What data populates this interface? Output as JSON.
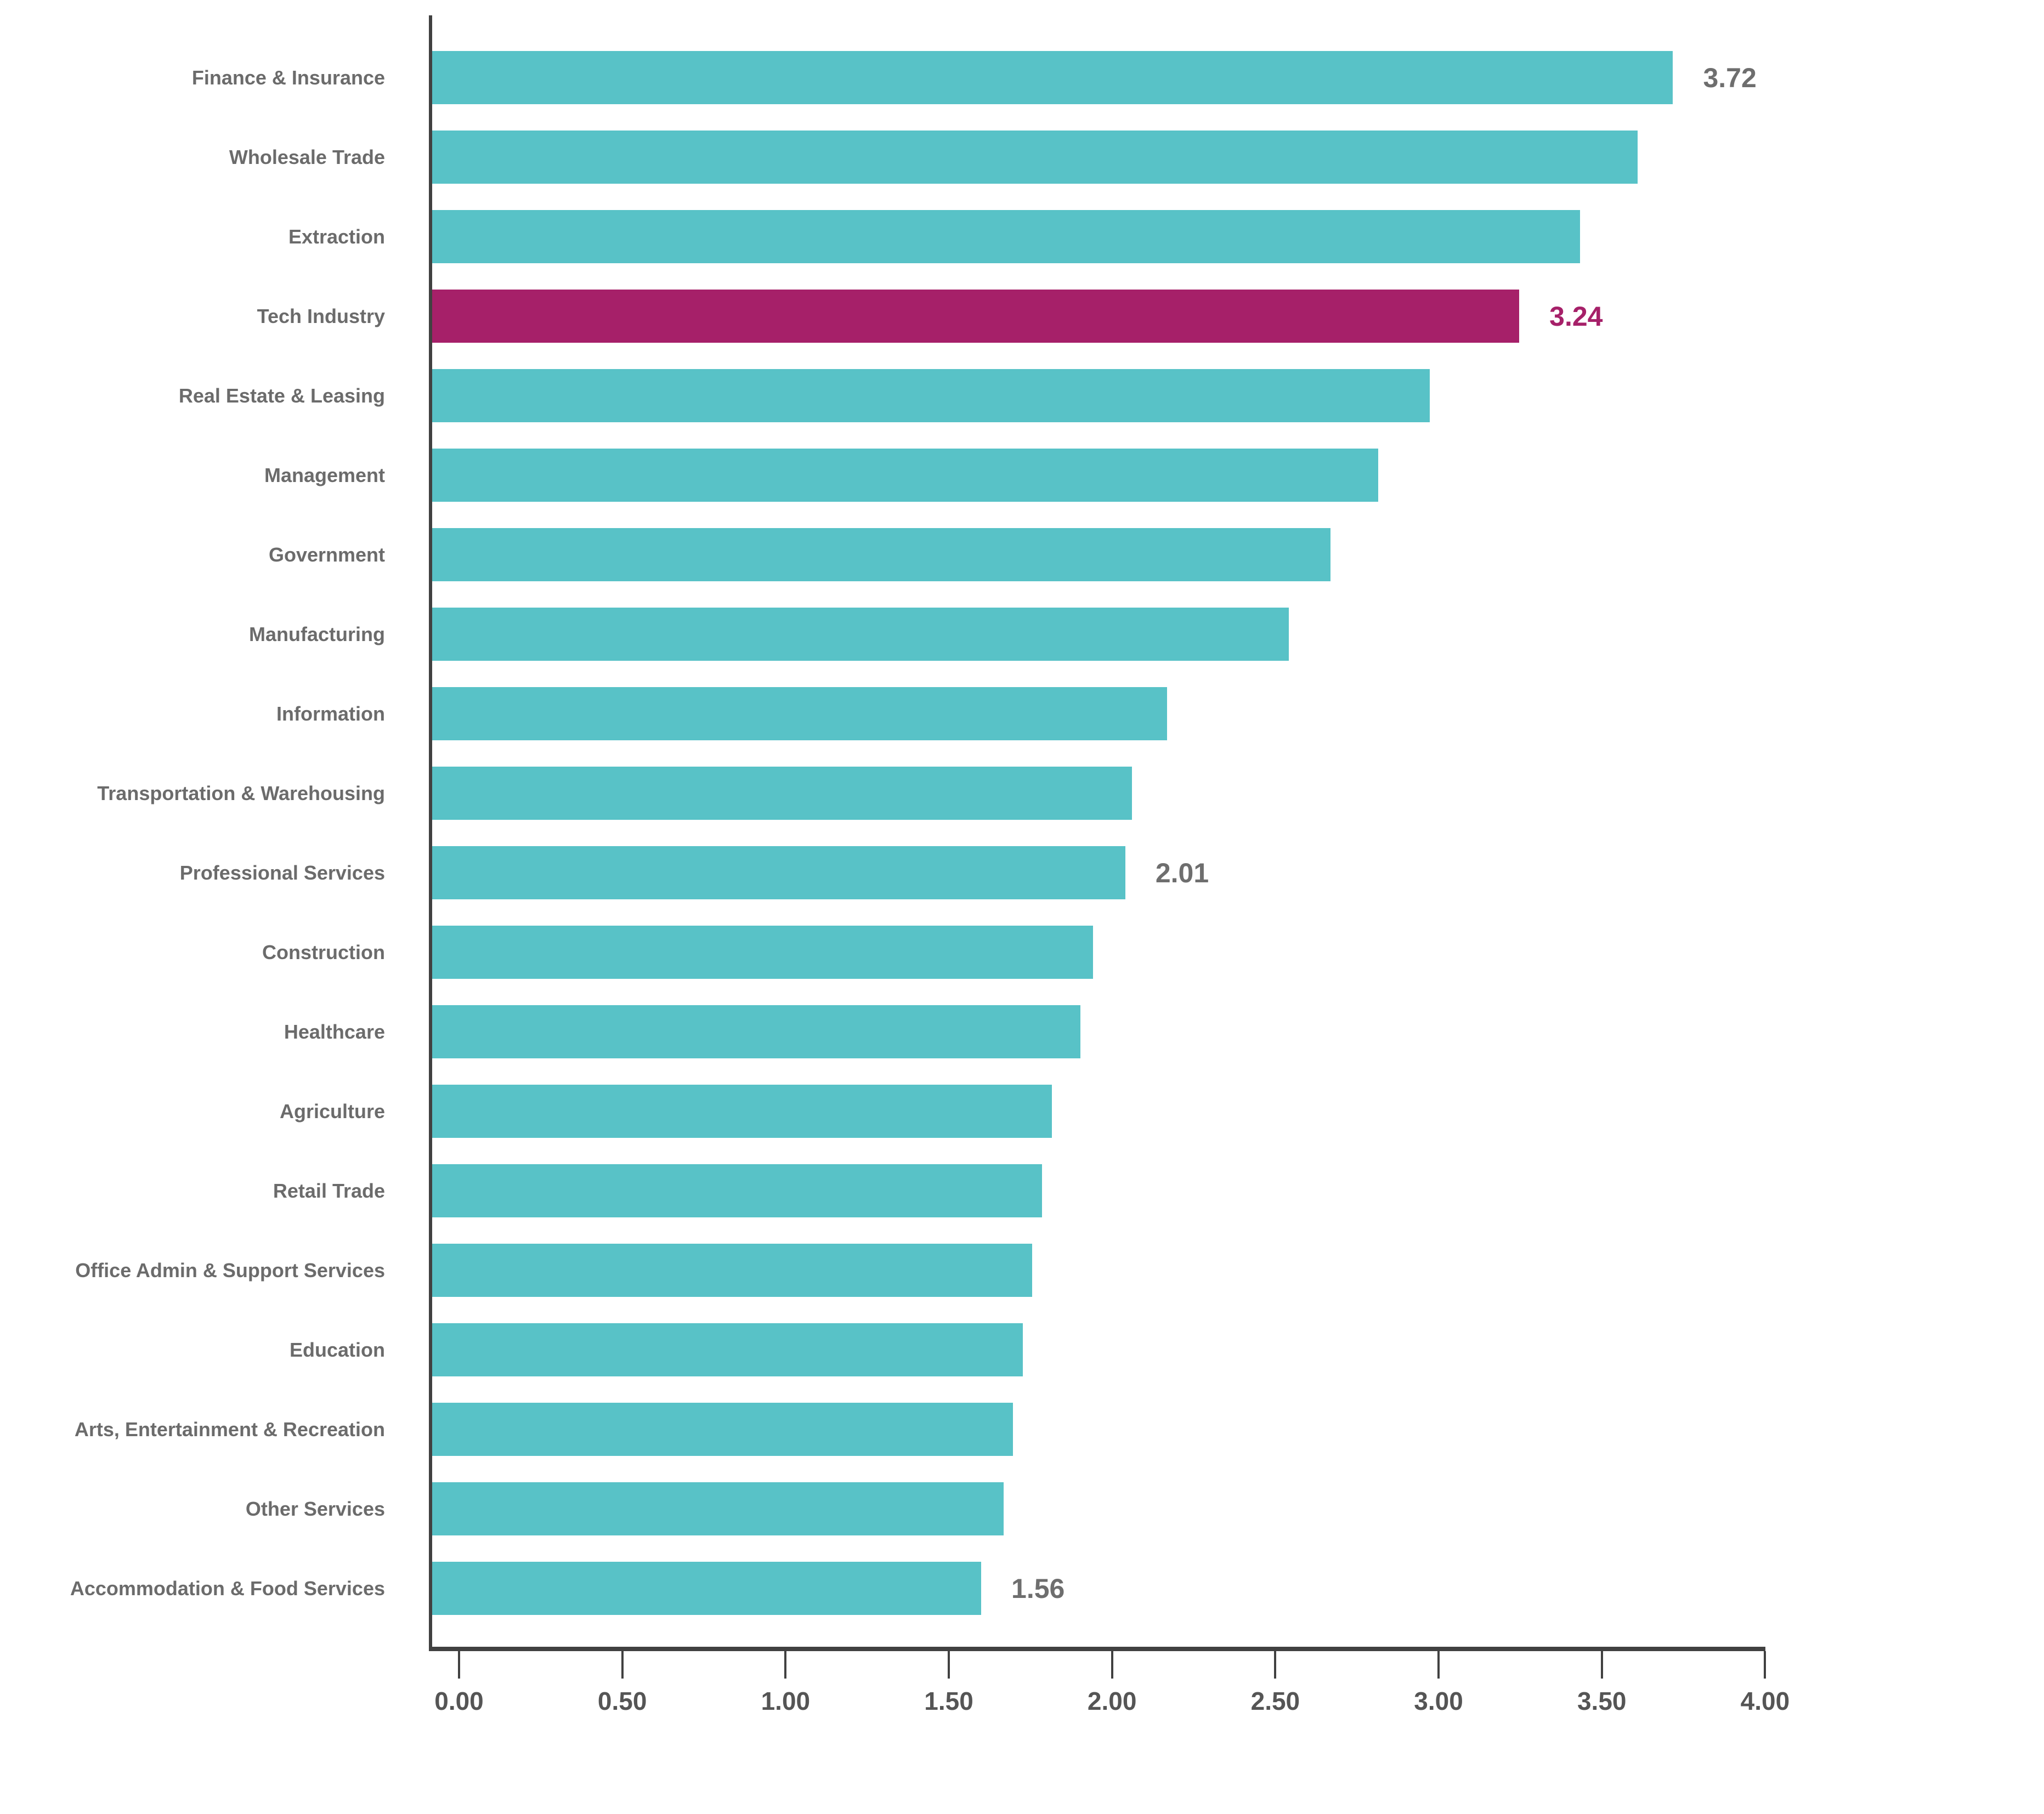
{
  "chart_data": {
    "type": "bar",
    "orientation": "horizontal",
    "title": "",
    "xlabel": "",
    "ylabel": "",
    "xlim": [
      0,
      4.0
    ],
    "grid": false,
    "legend": false,
    "x_ticks": [
      "0.00",
      "0.50",
      "1.00",
      "1.50",
      "2.00",
      "2.50",
      "3.00",
      "3.50",
      "4.00"
    ],
    "bar_color": "#58C2C7",
    "highlight_color": "#A62069",
    "axis_color": "#414141",
    "category_label_color": "#6B6B6B",
    "tick_label_color": "#555555",
    "annotation_color": "#6E6E6E",
    "highlighted_category": "Tech Industry",
    "bars": [
      {
        "label": "Finance & Insurance",
        "value": 3.72,
        "annotation": "3.72",
        "highlight": false
      },
      {
        "label": "Wholesale Trade",
        "value": 3.61,
        "annotation": "",
        "highlight": false
      },
      {
        "label": "Extraction",
        "value": 3.43,
        "annotation": "",
        "highlight": false
      },
      {
        "label": "Tech Industry",
        "value": 3.24,
        "annotation": "3.24",
        "highlight": true
      },
      {
        "label": "Real Estate & Leasing",
        "value": 2.96,
        "annotation": "",
        "highlight": false
      },
      {
        "label": "Management",
        "value": 2.8,
        "annotation": "",
        "highlight": false
      },
      {
        "label": "Government",
        "value": 2.65,
        "annotation": "",
        "highlight": false
      },
      {
        "label": "Manufacturing",
        "value": 2.52,
        "annotation": "",
        "highlight": false
      },
      {
        "label": "Information",
        "value": 2.14,
        "annotation": "",
        "highlight": false
      },
      {
        "label": "Transportation & Warehousing",
        "value": 2.03,
        "annotation": "",
        "highlight": false
      },
      {
        "label": "Professional Services",
        "value": 2.01,
        "annotation": "2.01",
        "highlight": false
      },
      {
        "label": "Construction",
        "value": 1.91,
        "annotation": "",
        "highlight": false
      },
      {
        "label": "Healthcare",
        "value": 1.87,
        "annotation": "",
        "highlight": false
      },
      {
        "label": "Agriculture",
        "value": 1.78,
        "annotation": "",
        "highlight": false
      },
      {
        "label": "Retail Trade",
        "value": 1.75,
        "annotation": "",
        "highlight": false
      },
      {
        "label": "Office Admin & Support Services",
        "value": 1.72,
        "annotation": "",
        "highlight": false
      },
      {
        "label": "Education",
        "value": 1.69,
        "annotation": "",
        "highlight": false
      },
      {
        "label": "Arts, Entertainment & Recreation",
        "value": 1.66,
        "annotation": "",
        "highlight": false
      },
      {
        "label": "Other Services",
        "value": 1.63,
        "annotation": "",
        "highlight": false
      },
      {
        "label": "Accommodation & Food Services",
        "value": 1.56,
        "annotation": "1.56",
        "highlight": false
      }
    ]
  }
}
